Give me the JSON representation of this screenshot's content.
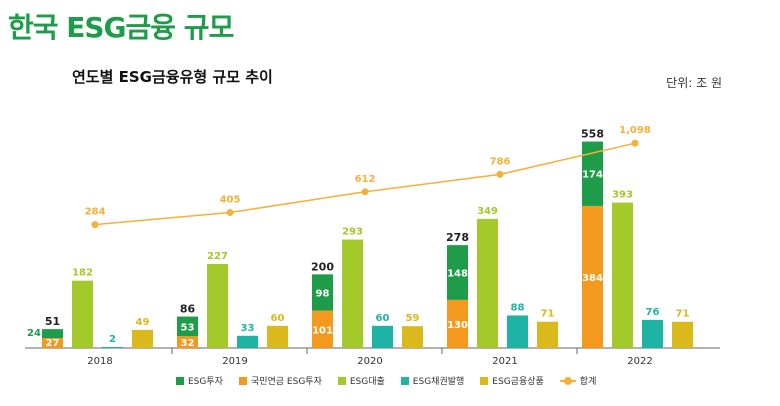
{
  "page": {
    "title": "한국 ESG금융 규모",
    "subtitle": "연도별 ESG금융유형 규모 추이",
    "unit": "단위: 조 원"
  },
  "chart_data": {
    "type": "bar",
    "categories": [
      "2018",
      "2019",
      "2020",
      "2021",
      "2022"
    ],
    "stacked_group": {
      "totals": [
        51,
        86,
        200,
        278,
        558
      ],
      "series": [
        {
          "name": "국민연금 ESG투자",
          "values": [
            27,
            32,
            101,
            130,
            384
          ],
          "color": "#f39a1e"
        },
        {
          "name": "ESG투자",
          "values": [
            24,
            53,
            98,
            148,
            174
          ],
          "color": "#1e9c4a"
        }
      ]
    },
    "series": [
      {
        "name": "ESG대출",
        "values": [
          182,
          227,
          293,
          349,
          393
        ],
        "color": "#a3c92a"
      },
      {
        "name": "ESG채권발행",
        "values": [
          2,
          33,
          60,
          88,
          76
        ],
        "color": "#1fb3a6"
      },
      {
        "name": "ESG금융상품",
        "values": [
          49,
          60,
          59,
          71,
          71
        ],
        "color": "#d9b91c"
      }
    ],
    "line": {
      "name": "합계",
      "values": [
        284,
        405,
        612,
        786,
        1098
      ],
      "color": "#f2b13a"
    },
    "legend": [
      "ESG투자",
      "국민연금 ESG투자",
      "ESG대출",
      "ESG채권발행",
      "ESG금융상품",
      "합계"
    ],
    "legend_position": "bottom",
    "grid": false
  }
}
